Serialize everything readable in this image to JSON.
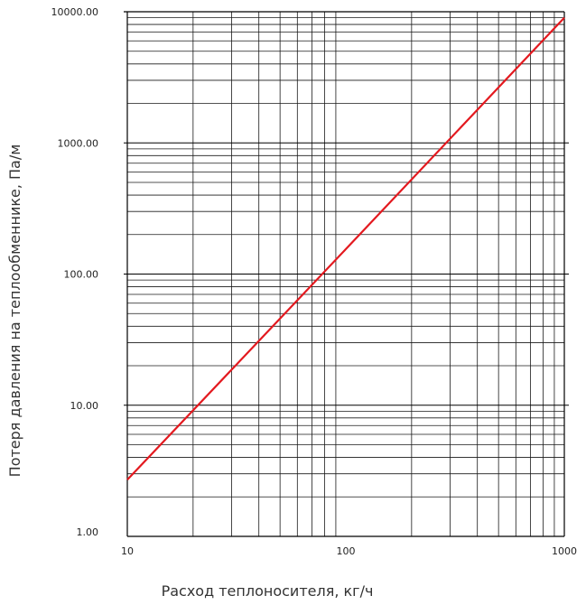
{
  "chart_data": {
    "type": "line",
    "xlabel": "Расход теплоносителя, кг/ч",
    "ylabel": "Потеря давления на теплообменнике, Па/м",
    "xscale": "log",
    "yscale": "log",
    "xlim": [
      10,
      1000
    ],
    "ylim": [
      1,
      10000
    ],
    "x_ticks": [
      "10",
      "100",
      "1000"
    ],
    "y_ticks": [
      "1.00",
      "10.00",
      "100.00",
      "1000.00",
      "10000.00"
    ],
    "grid": true,
    "series": [
      {
        "x": [
          10,
          100,
          1000
        ],
        "y": [
          2.7,
          155,
          9000
        ],
        "color": "#e3191f"
      }
    ]
  }
}
